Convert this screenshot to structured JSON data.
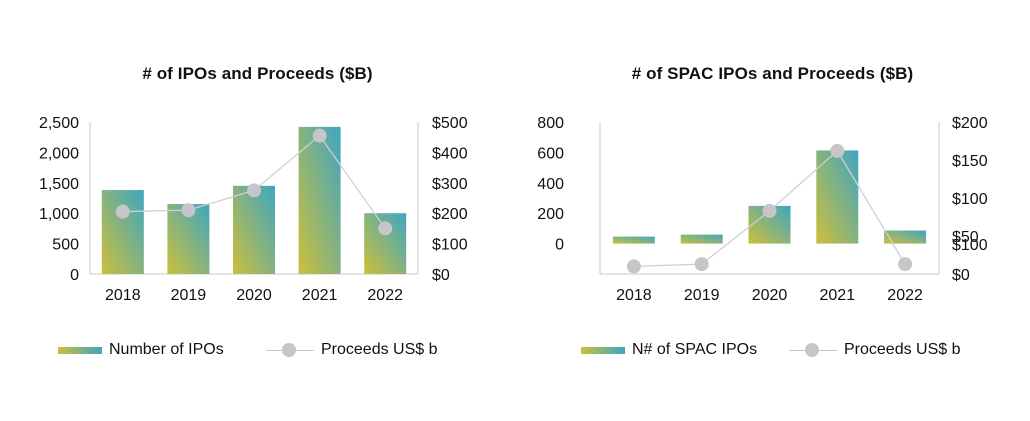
{
  "chart_data": [
    {
      "type": "bar",
      "title": "# of IPOs and Proceeds ($B)",
      "categories": [
        "2018",
        "2019",
        "2020",
        "2021",
        "2022"
      ],
      "series": [
        {
          "name": "Number of IPOs",
          "type": "bar",
          "axis": "left",
          "values": [
            1380,
            1150,
            1450,
            2420,
            1000
          ]
        },
        {
          "name": "Proceeds US$ b",
          "type": "line",
          "axis": "right",
          "values": [
            205,
            210,
            275,
            455,
            150
          ]
        }
      ],
      "y_left": {
        "min": 0,
        "max": 2500,
        "ticks": [
          0,
          500,
          1000,
          1500,
          2000,
          2500
        ],
        "tick_labels": [
          "0",
          "500",
          "1,000",
          "1,500",
          "2,000",
          "2,500"
        ]
      },
      "y_right": {
        "min": 0,
        "max": 500,
        "ticks": [
          0,
          100,
          200,
          300,
          400,
          500
        ],
        "tick_labels": [
          "$0",
          "$100",
          "$200",
          "$300",
          "$400",
          "$500"
        ]
      },
      "legend_position": "bottom",
      "grid": false
    },
    {
      "type": "bar",
      "title": "# of SPAC IPOs and Proceeds ($B)",
      "categories": [
        "2018",
        "2019",
        "2020",
        "2021",
        "2022"
      ],
      "series": [
        {
          "name": "N# of SPAC IPOs",
          "type": "bar",
          "axis": "left",
          "values": [
            46,
            59,
            248,
            613,
            86
          ]
        },
        {
          "name": "Proceeds US$ b",
          "type": "line",
          "axis": "right",
          "values": [
            10,
            13,
            83,
            162,
            13
          ]
        }
      ],
      "y_left": {
        "min": -200,
        "max": 800,
        "ticks": [
          -200,
          0,
          200,
          400,
          600,
          800
        ],
        "tick_labels": [
          "",
          "0",
          "200",
          "400",
          "600",
          "800"
        ]
      },
      "y_right": {
        "min": 0,
        "max": 200,
        "ticks": [
          0,
          50,
          100,
          150,
          200
        ],
        "tick_labels": [
          "$0",
          "$50",
          "$100",
          "$150",
          "$200"
        ],
        "extra_label": "$100"
      },
      "legend_position": "bottom",
      "grid": false
    }
  ],
  "colors": {
    "bar_top": "#3fa6c2",
    "bar_bottom": "#cdbf3a",
    "line": "#cfd0d4",
    "dot": "#c6c6ca",
    "axis": "#c9c9cd"
  }
}
